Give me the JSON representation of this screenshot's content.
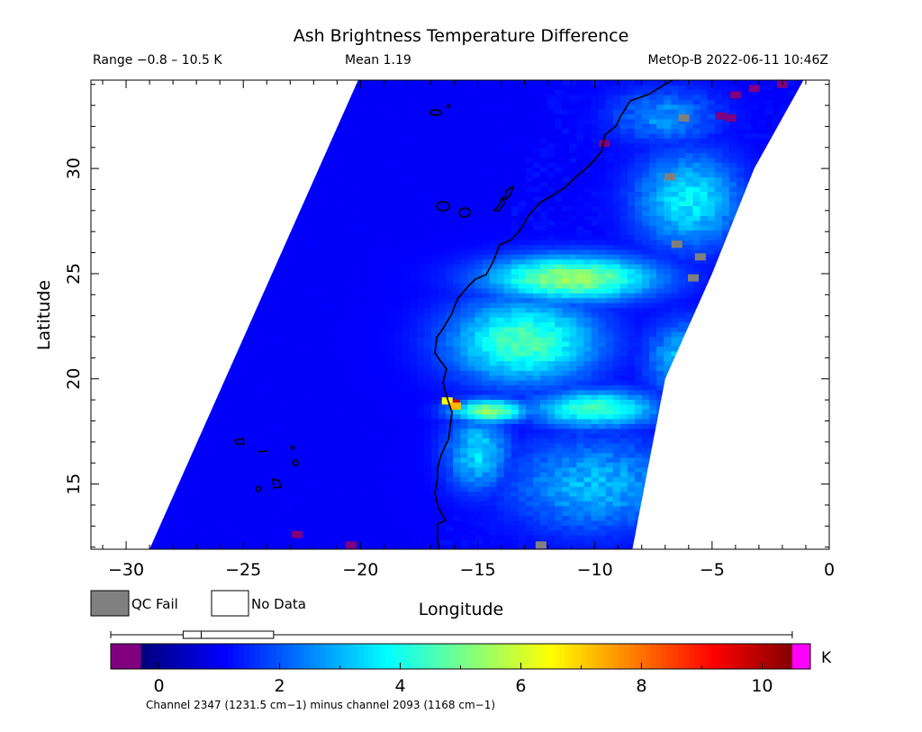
{
  "chart_data": {
    "type": "heatmap",
    "title": "Ash Brightness Temperature Difference",
    "header": {
      "range": "Range −0.8 – 10.5 K",
      "mean": "Mean 1.19",
      "source": "MetOp-B 2022-06-11 10:46Z"
    },
    "xlabel": "Longitude",
    "ylabel": "Latitude",
    "xlim": [
      -31.5,
      0
    ],
    "ylim": [
      11.9,
      34.2
    ],
    "xticks": [
      -30,
      -25,
      -20,
      -15,
      -10,
      -5,
      0
    ],
    "xtick_labels": [
      "−30",
      "−25",
      "−20",
      "−15",
      "−10",
      "−5",
      "0"
    ],
    "yticks": [
      15,
      20,
      25,
      30
    ],
    "ytick_labels": [
      "15",
      "20",
      "25",
      "30"
    ],
    "legend": [
      {
        "label": "QC Fail",
        "color": "#808080"
      },
      {
        "label": "No Data",
        "color": "#ffffff"
      }
    ],
    "colorbar": {
      "range": [
        -0.8,
        10.8
      ],
      "ticks": [
        0,
        2,
        4,
        6,
        8,
        10
      ],
      "tick_labels": [
        "0",
        "2",
        "4",
        "6",
        "8",
        "10"
      ],
      "unit": "K",
      "under_color": "#800080",
      "over_color": "#ff00ff",
      "colors": [
        "#00007f",
        "#0000ff",
        "#0080ff",
        "#00ffff",
        "#80ff80",
        "#ffff00",
        "#ff8000",
        "#ff0000",
        "#7f0000"
      ],
      "boxplot": {
        "whisker_low": -0.8,
        "q1": 0.4,
        "median": 0.7,
        "q3": 1.9,
        "whisker_high": 10.5
      }
    },
    "footer": "Channel 2347 (1231.5 cm−1) minus channel 2093 (1168 cm−1)",
    "swath": {
      "left_edge": [
        [
          -20.1,
          34.2
        ],
        [
          -29.0,
          11.9
        ]
      ],
      "right_edge": [
        [
          -1.1,
          34.2
        ],
        [
          -3.2,
          30.0
        ],
        [
          -5.0,
          25.0
        ],
        [
          -6.2,
          22.0
        ],
        [
          -7.0,
          20.0
        ],
        [
          -8.4,
          11.9
        ]
      ]
    },
    "background_value": 1.0,
    "features": [
      {
        "lon": -11.0,
        "lat": 24.8,
        "rx": 4.0,
        "ry": 1.2,
        "value": 5.4
      },
      {
        "lon": -13.0,
        "lat": 21.8,
        "rx": 3.5,
        "ry": 2.2,
        "value": 4.6
      },
      {
        "lon": -14.5,
        "lat": 18.5,
        "rx": 1.8,
        "ry": 0.6,
        "value": 5.3
      },
      {
        "lon": -10.0,
        "lat": 18.6,
        "rx": 3.0,
        "ry": 1.0,
        "value": 4.4
      },
      {
        "lon": -10.0,
        "lat": 15.0,
        "rx": 4.0,
        "ry": 2.5,
        "value": 3.0
      },
      {
        "lon": -6.0,
        "lat": 28.5,
        "rx": 2.5,
        "ry": 2.5,
        "value": 3.6
      },
      {
        "lon": -6.0,
        "lat": 21.0,
        "rx": 2.0,
        "ry": 2.0,
        "value": 3.2
      },
      {
        "lon": -15.0,
        "lat": 16.5,
        "rx": 1.5,
        "ry": 2.0,
        "value": 3.4
      },
      {
        "lon": -7.0,
        "lat": 32.5,
        "rx": 2.5,
        "ry": 1.5,
        "value": 2.6
      }
    ],
    "hotspots": [
      {
        "lon": -16.0,
        "lat": 18.85,
        "value": 9.8
      },
      {
        "lon": -16.3,
        "lat": 18.95,
        "value": 6.4
      },
      {
        "lon": -15.95,
        "lat": 18.7,
        "value": 7.2
      }
    ],
    "qc_fail": [
      [
        -6.2,
        32.4
      ],
      [
        -6.8,
        29.6
      ],
      [
        -6.5,
        26.4
      ],
      [
        -5.5,
        25.8
      ],
      [
        -5.8,
        24.8
      ],
      [
        -12.3,
        12.1
      ]
    ],
    "below_range": [
      [
        -3.2,
        33.8
      ],
      [
        -4.0,
        33.5
      ],
      [
        -4.6,
        32.5
      ],
      [
        -4.2,
        32.4
      ],
      [
        -2.0,
        34.0
      ],
      [
        -22.7,
        12.6
      ],
      [
        -20.4,
        12.1
      ],
      [
        -9.6,
        31.2
      ]
    ]
  }
}
